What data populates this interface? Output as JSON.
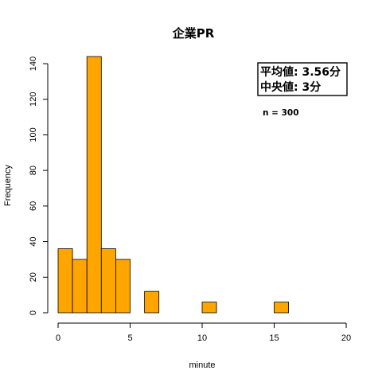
{
  "chart_data": {
    "type": "bar",
    "title": "企業PR",
    "xlabel": "minute",
    "ylabel": "Frequency",
    "bin_width": 1,
    "bins": [
      {
        "x0": 0,
        "x1": 1,
        "count": 36
      },
      {
        "x0": 1,
        "x1": 2,
        "count": 30
      },
      {
        "x0": 2,
        "x1": 3,
        "count": 144
      },
      {
        "x0": 3,
        "x1": 4,
        "count": 36
      },
      {
        "x0": 4,
        "x1": 5,
        "count": 30
      },
      {
        "x0": 5,
        "x1": 6,
        "count": 0
      },
      {
        "x0": 6,
        "x1": 7,
        "count": 12
      },
      {
        "x0": 7,
        "x1": 8,
        "count": 0
      },
      {
        "x0": 8,
        "x1": 9,
        "count": 0
      },
      {
        "x0": 9,
        "x1": 10,
        "count": 0
      },
      {
        "x0": 10,
        "x1": 11,
        "count": 6
      },
      {
        "x0": 11,
        "x1": 12,
        "count": 0
      },
      {
        "x0": 12,
        "x1": 13,
        "count": 0
      },
      {
        "x0": 13,
        "x1": 14,
        "count": 0
      },
      {
        "x0": 14,
        "x1": 15,
        "count": 0
      },
      {
        "x0": 15,
        "x1": 16,
        "count": 6
      },
      {
        "x0": 16,
        "x1": 17,
        "count": 0
      },
      {
        "x0": 17,
        "x1": 18,
        "count": 0
      },
      {
        "x0": 18,
        "x1": 19,
        "count": 0
      },
      {
        "x0": 19,
        "x1": 20,
        "count": 0
      }
    ],
    "xlim": [
      0,
      20
    ],
    "ylim": [
      0,
      140
    ],
    "x_ticks": [
      0,
      5,
      10,
      15,
      20
    ],
    "y_ticks": [
      0,
      20,
      40,
      60,
      80,
      100,
      120,
      140
    ],
    "grid": false,
    "annotations": {
      "mean_label": "平均値: 3.56分",
      "median_label": "中央値: 3分",
      "n_label": "n = 300"
    },
    "bar_color": "#ffa500"
  }
}
